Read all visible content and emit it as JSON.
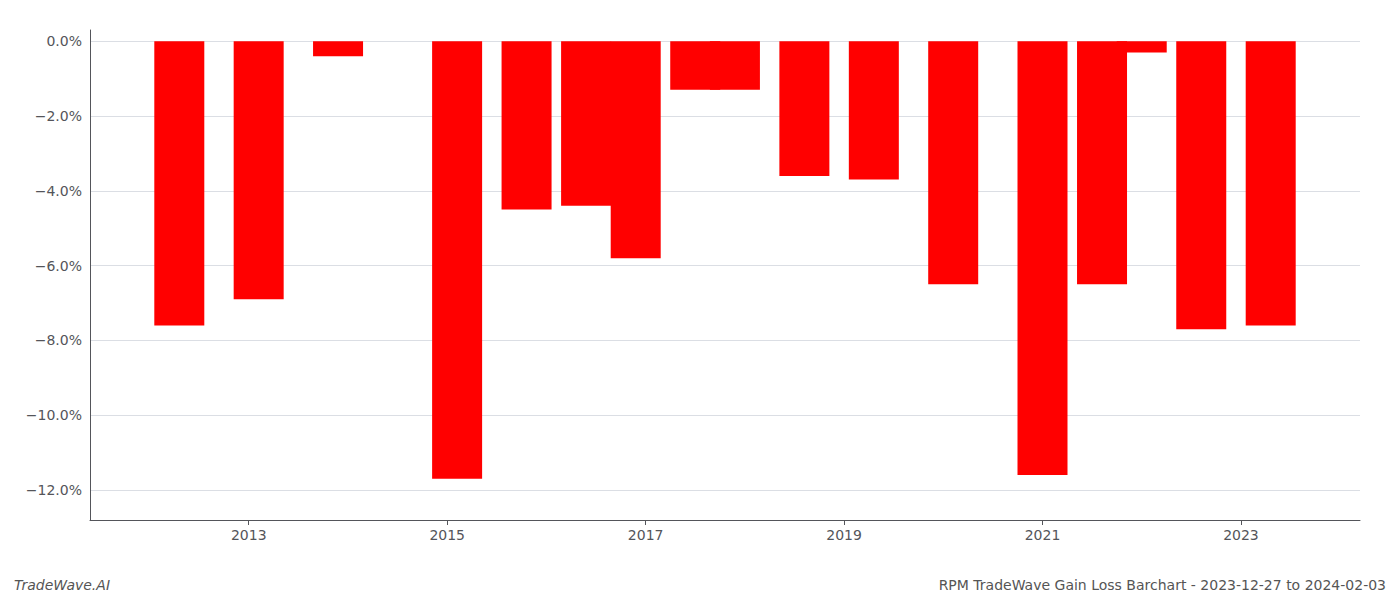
{
  "chart_data": {
    "type": "bar",
    "x": [
      2012.3,
      2013.1,
      2013.9,
      2015.1,
      2015.8,
      2016.4,
      2016.9,
      2017.5,
      2017.9,
      2018.6,
      2019.3,
      2020.1,
      2021.0,
      2021.6,
      2022.0,
      2022.6,
      2023.3
    ],
    "values": [
      -7.6,
      -6.9,
      -0.4,
      -11.7,
      -4.5,
      -4.4,
      -5.8,
      -1.3,
      -1.3,
      -3.6,
      -3.7,
      -6.5,
      -11.6,
      -6.5,
      -0.3,
      -7.7,
      -7.6
    ],
    "color": "#ff0000",
    "xlim": [
      2011.4,
      2024.2
    ],
    "xticks": [
      2013,
      2015,
      2017,
      2019,
      2021,
      2023
    ],
    "ylim": [
      -12.8,
      0.3
    ],
    "yticks": [
      {
        "value": 0.0,
        "label": "0.0%"
      },
      {
        "value": -2.0,
        "label": "−2.0%"
      },
      {
        "value": -4.0,
        "label": "−4.0%"
      },
      {
        "value": -6.0,
        "label": "−6.0%"
      },
      {
        "value": -8.0,
        "label": "−8.0%"
      },
      {
        "value": -10.0,
        "label": "−10.0%"
      },
      {
        "value": -12.0,
        "label": "−12.0%"
      }
    ],
    "grid": true,
    "annotations": [
      "TradeWave.AI",
      "RPM TradeWave Gain Loss Barchart - 2023-12-27 to 2024-02-03"
    ]
  }
}
